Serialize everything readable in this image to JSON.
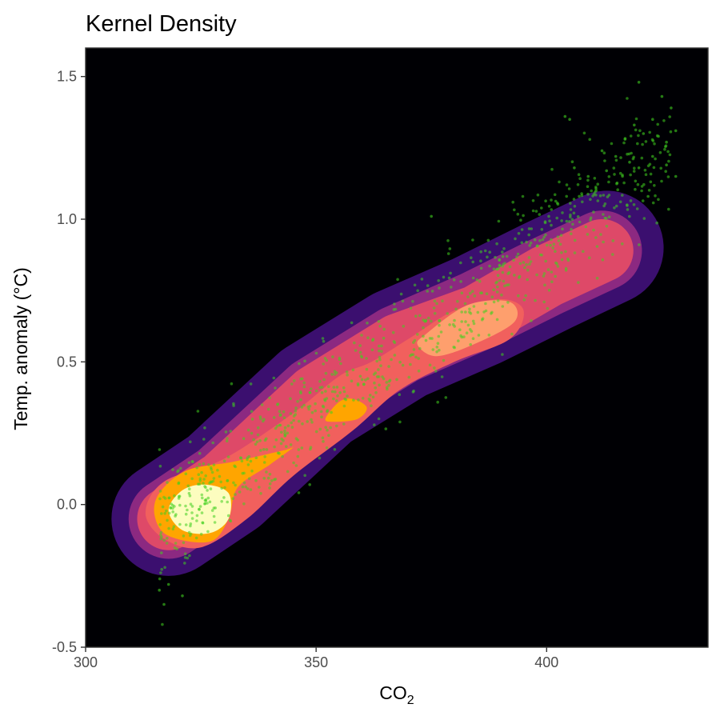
{
  "chart_data": {
    "type": "density_contour",
    "title": "Kernel Density",
    "xlabel_main": "CO",
    "xlabel_sub": "2",
    "ylabel": "Temp. anomaly (°C)",
    "xlim": [
      300,
      435
    ],
    "ylim": [
      -0.5,
      1.6
    ],
    "x_ticks": [
      300,
      350,
      400
    ],
    "x_tick_labels": [
      "300",
      "350",
      "400"
    ],
    "y_ticks": [
      -0.5,
      0.0,
      0.5,
      1.0,
      1.5
    ],
    "y_tick_labels": [
      "-0.5",
      "0.0",
      "0.5",
      "1.0",
      "1.5"
    ],
    "panel_background": "#000004",
    "grid": false,
    "legend": "none",
    "point_color": "#3fcf1f",
    "density_bands": [
      {
        "level": 1,
        "color": "#3b0f6f",
        "centerline": [
          [
            318,
            -0.05
          ],
          [
            330,
            0.08
          ],
          [
            350,
            0.38
          ],
          [
            368,
            0.56
          ],
          [
            385,
            0.68
          ],
          [
            400,
            0.8
          ],
          [
            413,
            0.9
          ]
        ],
        "halfwidth": 0.2
      },
      {
        "level": 2,
        "color": "#8c2981",
        "centerline": [
          [
            318,
            -0.05
          ],
          [
            330,
            0.08
          ],
          [
            350,
            0.38
          ],
          [
            368,
            0.56
          ],
          [
            385,
            0.68
          ],
          [
            400,
            0.8
          ],
          [
            412,
            0.89
          ]
        ],
        "halfwidth": 0.14
      },
      {
        "level": 3,
        "color": "#de4968",
        "centerline": [
          [
            318,
            -0.05
          ],
          [
            330,
            0.08
          ],
          [
            350,
            0.38
          ],
          [
            368,
            0.56
          ],
          [
            385,
            0.66
          ],
          [
            400,
            0.8
          ],
          [
            412,
            0.89
          ]
        ],
        "halfwidth": 0.11
      }
    ],
    "density_cores": [
      {
        "level": 4,
        "color": "#f1605d",
        "polygon": [
          [
            317,
            0.08
          ],
          [
            330,
            0.16
          ],
          [
            345,
            0.32
          ],
          [
            355,
            0.45
          ],
          [
            362,
            0.5
          ],
          [
            370,
            0.58
          ],
          [
            380,
            0.68
          ],
          [
            390,
            0.72
          ],
          [
            395,
            0.68
          ],
          [
            392,
            0.58
          ],
          [
            380,
            0.5
          ],
          [
            368,
            0.4
          ],
          [
            358,
            0.26
          ],
          [
            345,
            0.1
          ],
          [
            335,
            -0.05
          ],
          [
            325,
            -0.15
          ],
          [
            317,
            -0.12
          ],
          [
            313,
            -0.03
          ]
        ]
      },
      {
        "level": 5,
        "color": "#fe9f6d",
        "polygon": [
          [
            374,
            0.6
          ],
          [
            383,
            0.7
          ],
          [
            392,
            0.71
          ],
          [
            393,
            0.64
          ],
          [
            384,
            0.56
          ],
          [
            376,
            0.52
          ],
          [
            372,
            0.56
          ]
        ]
      },
      {
        "level": 6,
        "color": "#ffa500",
        "polygon": [
          [
            316,
            0.04
          ],
          [
            322,
            0.12
          ],
          [
            332,
            0.15
          ],
          [
            343,
            0.19
          ],
          [
            345,
            0.2
          ],
          [
            340,
            0.14
          ],
          [
            333,
            0.06
          ],
          [
            331,
            -0.05
          ],
          [
            327,
            -0.13
          ],
          [
            318,
            -0.11
          ],
          [
            315,
            -0.04
          ]
        ]
      },
      {
        "level": 7,
        "color": "#ffa500",
        "polygon": [
          [
            352,
            0.3
          ],
          [
            355,
            0.36
          ],
          [
            358,
            0.37
          ],
          [
            361,
            0.34
          ],
          [
            359,
            0.3
          ],
          [
            354,
            0.29
          ]
        ]
      },
      {
        "level": 8,
        "color": "#fcfdbf",
        "polygon": [
          [
            318,
            -0.02
          ],
          [
            321,
            0.05
          ],
          [
            326,
            0.07
          ],
          [
            331,
            0.04
          ],
          [
            331,
            -0.05
          ],
          [
            327,
            -0.1
          ],
          [
            321,
            -0.09
          ]
        ]
      }
    ],
    "scatter_trend": {
      "x_from": 316,
      "x_to": 427,
      "y_at_from": -0.08,
      "y_at_to": 1.25,
      "spread": 0.1,
      "n": 900
    },
    "outlier_points": [
      [
        420,
        1.48
      ],
      [
        425,
        1.43
      ],
      [
        427,
        1.39
      ],
      [
        423,
        1.35
      ],
      [
        404,
        1.36
      ],
      [
        405,
        1.35
      ],
      [
        428,
        1.31
      ],
      [
        419,
        1.33
      ],
      [
        421,
        1.3
      ],
      [
        417,
        1.28
      ],
      [
        426,
        1.27
      ],
      [
        423,
        1.22
      ],
      [
        418,
        1.2
      ],
      [
        415,
        1.22
      ],
      [
        412,
        1.24
      ],
      [
        420,
        1.18
      ],
      [
        426,
        1.19
      ],
      [
        428,
        1.15
      ],
      [
        406,
        1.18
      ],
      [
        409,
        1.15
      ],
      [
        413,
        1.17
      ],
      [
        422,
        1.08
      ],
      [
        375,
        1.01
      ],
      [
        317,
        -0.35
      ],
      [
        316,
        -0.3
      ],
      [
        318,
        -0.28
      ],
      [
        321,
        -0.32
      ]
    ]
  }
}
